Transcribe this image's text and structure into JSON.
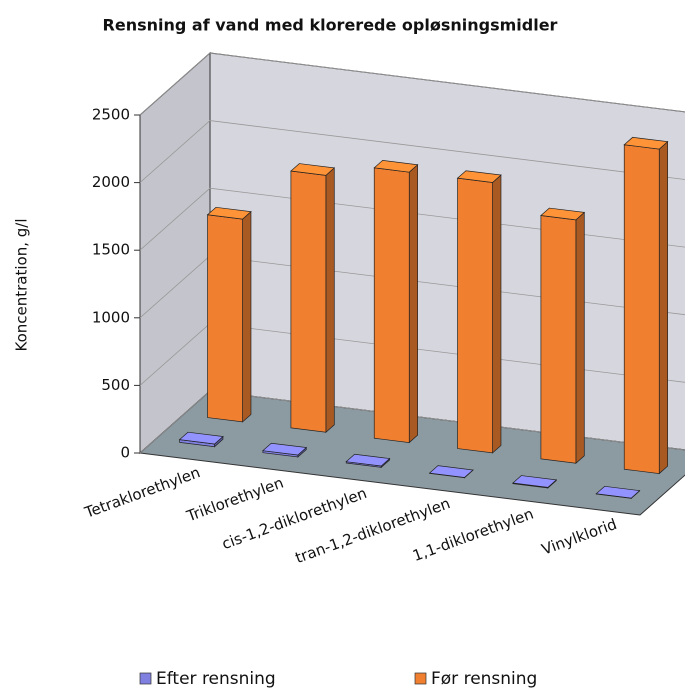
{
  "chart_data": {
    "type": "bar3d",
    "title": "Rensning af vand med klorerede opløsningsmidler",
    "y_label": "Koncentration,  g/l",
    "categories": [
      "Tetraklorethylen",
      "Triklorethylen",
      "cis-1,2-diklorethylen",
      "tran-1,2-diklorethylen",
      "1,1-diklorethylen",
      "Vinylklorid"
    ],
    "series": [
      {
        "name": "Efter rensning",
        "color": "#8080e0",
        "values": [
          20,
          15,
          10,
          2,
          5,
          2
        ]
      },
      {
        "name": "Før rensning",
        "color": "#f08030",
        "values": [
          1500,
          1900,
          2000,
          2000,
          1800,
          2400
        ]
      }
    ],
    "ylim": [
      0,
      2500
    ],
    "yticks": [
      0,
      500,
      1000,
      1500,
      2000,
      2500
    ],
    "grid": true,
    "legend": "bottom"
  }
}
